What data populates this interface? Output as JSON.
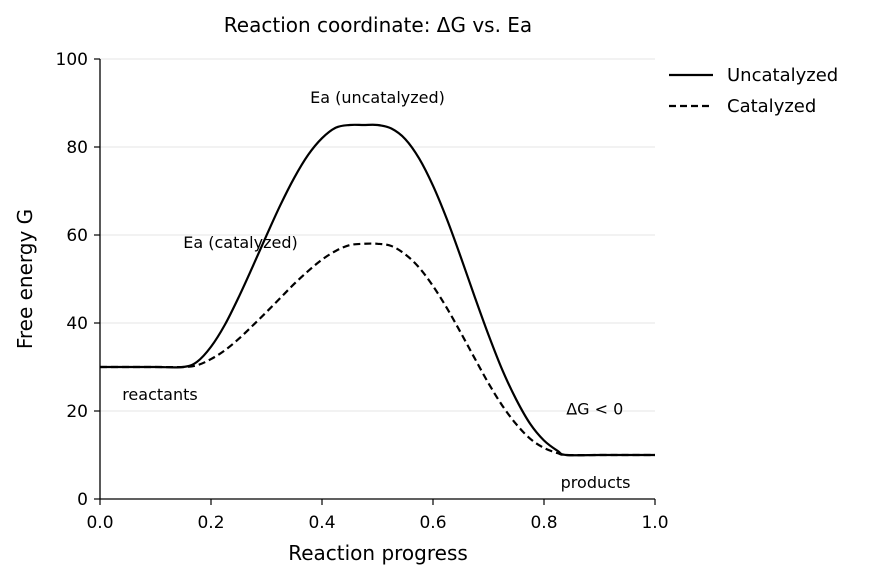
{
  "chart_data": {
    "type": "line",
    "title": "Reaction coordinate: ΔG vs. Ea",
    "xlabel": "Reaction progress",
    "ylabel": "Free energy G",
    "xlim": [
      0.0,
      1.0
    ],
    "ylim": [
      0,
      100
    ],
    "xticks": [
      "0.0",
      "0.2",
      "0.4",
      "0.6",
      "0.8",
      "1.0"
    ],
    "yticks": [
      "0",
      "20",
      "40",
      "60",
      "80",
      "100"
    ],
    "grid": "horizontal",
    "legend_position": "outside-top-right",
    "series": [
      {
        "name": "Uncatalyzed",
        "style": "solid",
        "color": "#000000",
        "x": [
          0.0,
          0.05,
          0.1,
          0.15,
          0.175,
          0.2,
          0.225,
          0.25,
          0.275,
          0.3,
          0.325,
          0.35,
          0.375,
          0.4,
          0.425,
          0.45,
          0.475,
          0.5,
          0.525,
          0.55,
          0.575,
          0.6,
          0.625,
          0.65,
          0.675,
          0.7,
          0.725,
          0.75,
          0.775,
          0.8,
          0.825,
          0.84,
          0.9,
          0.95,
          1.0
        ],
        "y": [
          30.0,
          30.0,
          30.0,
          30.0,
          31.2,
          34.6,
          39.6,
          45.9,
          52.8,
          59.9,
          66.8,
          73.0,
          78.2,
          82.0,
          84.4,
          85.0,
          85.0,
          85.0,
          84.2,
          81.8,
          77.4,
          71.2,
          63.6,
          55.0,
          46.0,
          37.3,
          29.3,
          22.6,
          17.1,
          13.3,
          10.9,
          10.0,
          10.0,
          10.0,
          10.0
        ]
      },
      {
        "name": "Catalyzed",
        "style": "dashed",
        "color": "#000000",
        "x": [
          0.0,
          0.05,
          0.1,
          0.15,
          0.175,
          0.2,
          0.225,
          0.25,
          0.275,
          0.3,
          0.325,
          0.35,
          0.375,
          0.4,
          0.425,
          0.45,
          0.475,
          0.5,
          0.525,
          0.55,
          0.575,
          0.6,
          0.625,
          0.65,
          0.675,
          0.7,
          0.725,
          0.75,
          0.775,
          0.8,
          0.825,
          0.84,
          0.9,
          0.95,
          1.0
        ],
        "y": [
          30.0,
          30.0,
          30.0,
          30.0,
          30.4,
          31.8,
          33.8,
          36.4,
          39.4,
          42.5,
          45.7,
          48.9,
          51.8,
          54.4,
          56.4,
          57.7,
          58.0,
          58.0,
          57.5,
          55.6,
          52.6,
          48.4,
          43.4,
          37.8,
          32.0,
          26.3,
          21.2,
          17.0,
          13.7,
          11.6,
          10.4,
          10.0,
          10.0,
          10.0,
          10.0
        ]
      }
    ],
    "annotations": [
      {
        "text": "Ea (uncatalyzed)",
        "x": 0.5,
        "y": 90,
        "anchor": "middle"
      },
      {
        "text": "Ea (catalyzed)",
        "x": 0.15,
        "y": 57,
        "anchor": "start"
      },
      {
        "text": "reactants",
        "x": 0.04,
        "y": 22.5,
        "anchor": "start"
      },
      {
        "text": "ΔG < 0",
        "x": 0.84,
        "y": 19.2,
        "anchor": "start"
      },
      {
        "text": "products",
        "x": 0.83,
        "y": 2.5,
        "anchor": "start"
      }
    ]
  }
}
